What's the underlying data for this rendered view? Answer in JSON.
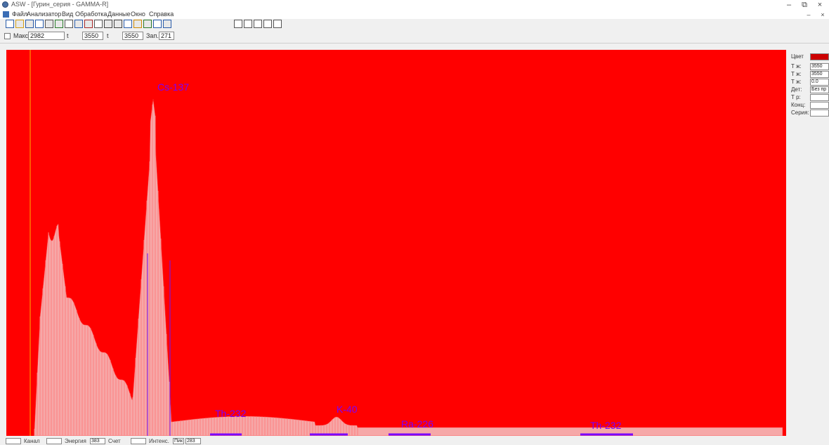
{
  "window": {
    "title": "ASW - [Гурин_серия - GAMMA-R]",
    "minimize": "–",
    "restore": "⧉",
    "close": "×"
  },
  "menu": {
    "items": [
      "Файл",
      "Анализатор",
      "Вид",
      "Обработка",
      "Данные",
      "Окно",
      "Справка"
    ]
  },
  "toolbar": {
    "left_icons": [
      "new-icon",
      "open-icon",
      "save-icon",
      "save-as-icon",
      "grid-icon",
      "chart-icon",
      "grid-icon",
      "zoom-icon",
      "image-icon",
      "window-icon",
      "print-icon",
      "print-preview-icon",
      "undo-icon",
      "settings-icon",
      "export-icon",
      "info-icon",
      "help-icon"
    ],
    "right_icons": [
      "view-1-icon",
      "view-2-icon",
      "view-3-icon",
      "view-4-icon",
      "view-5-icon"
    ]
  },
  "params": {
    "max_label": "Макс.",
    "max_value": "2982",
    "t1_label": "t",
    "t1_value": "3550",
    "t2_label": "t",
    "t2_value": "3550",
    "live_label": "Зап.",
    "live_value": "271"
  },
  "spectrum": {
    "background": "#ff0000",
    "peaks": [
      {
        "label": "Cs-137",
        "energy_label": "Cs-137"
      },
      {
        "label": "Th-232",
        "energy_label": "Th-232"
      },
      {
        "label": "K-40",
        "energy_label": "K-40"
      },
      {
        "label": "Ra-226",
        "energy_label": "Ra-226"
      },
      {
        "label": "Th-232",
        "energy_label": "Th-232"
      }
    ]
  },
  "side_panel": {
    "color_label": "Цвет",
    "color_value": "#cc0000",
    "rows": [
      {
        "label": "Т ж:",
        "value": "3550"
      },
      {
        "label": "Т ж:",
        "value": "3550"
      },
      {
        "label": "Т ж:",
        "value": "0.0"
      },
      {
        "label": "Дет:",
        "value": "Без пр"
      },
      {
        "label": "Т р:",
        "value": ""
      },
      {
        "label": "Конц:",
        "value": ""
      },
      {
        "label": "Серия:",
        "value": ""
      }
    ]
  },
  "status": {
    "label1": "Канал",
    "value1": "",
    "label2": "Энергия",
    "value2": "",
    "label3": "Счет",
    "value3": "383",
    "label4": "Интенс.",
    "value4": "",
    "label5": "Пик",
    "value5": "283"
  }
}
